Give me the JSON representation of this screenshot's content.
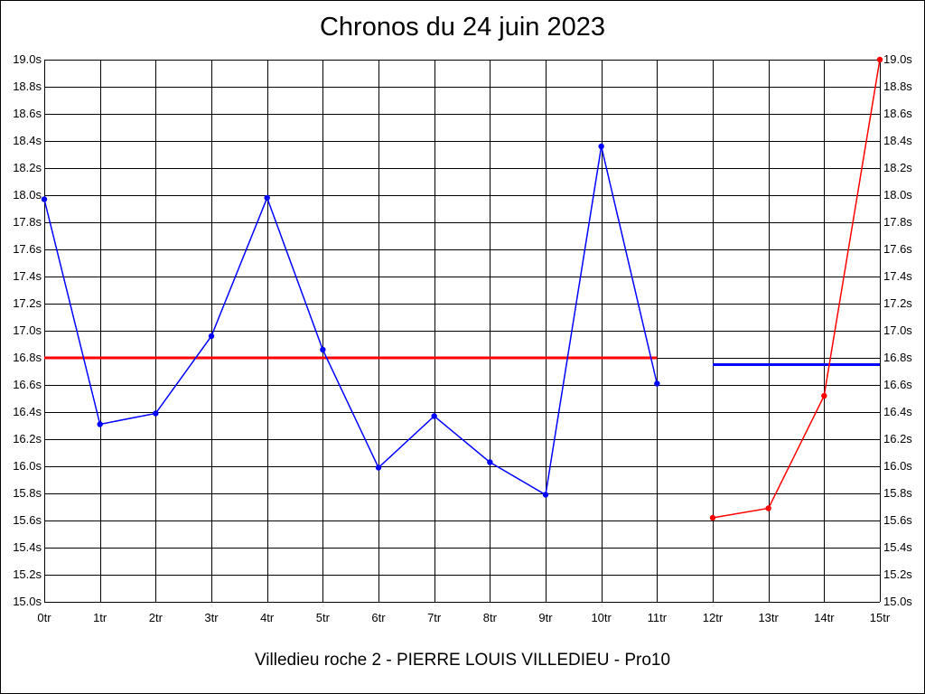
{
  "chart_data": {
    "type": "line",
    "title": "Chronos du 24 juin 2023",
    "subtitle": "Villedieu roche 2 - PIERRE LOUIS VILLEDIEU - Pro10",
    "xlabel": "",
    "ylabel": "",
    "categories": [
      "0tr",
      "1tr",
      "2tr",
      "3tr",
      "4tr",
      "5tr",
      "6tr",
      "7tr",
      "8tr",
      "9tr",
      "10tr",
      "11tr",
      "12tr",
      "13tr",
      "14tr",
      "15tr"
    ],
    "x": [
      0,
      1,
      2,
      3,
      4,
      5,
      6,
      7,
      8,
      9,
      10,
      11,
      12,
      13,
      14,
      15
    ],
    "ylim": [
      15.0,
      19.0
    ],
    "yticks": [
      15.0,
      15.2,
      15.4,
      15.6,
      15.8,
      16.0,
      16.2,
      16.4,
      16.6,
      16.8,
      17.0,
      17.2,
      17.4,
      17.6,
      17.8,
      18.0,
      18.2,
      18.4,
      18.6,
      18.8,
      19.0
    ],
    "ytick_suffix": "s",
    "grid": true,
    "series": [
      {
        "color": "#0000ff",
        "x": [
          0,
          1,
          2,
          3,
          4,
          5,
          6,
          7,
          8,
          9,
          10,
          11
        ],
        "values": [
          17.97,
          16.31,
          16.39,
          16.96,
          17.98,
          16.86,
          15.99,
          16.37,
          16.03,
          15.79,
          18.36,
          16.61
        ]
      },
      {
        "color": "#ff0000",
        "x": [
          12,
          13,
          14,
          15
        ],
        "values": [
          15.62,
          15.69,
          16.52,
          19.0
        ]
      }
    ],
    "reference_lines": [
      {
        "color": "#ff0000",
        "x_range": [
          0,
          11
        ],
        "value": 16.8
      },
      {
        "color": "#0000ff",
        "x_range": [
          12,
          15
        ],
        "value": 16.75
      }
    ]
  }
}
